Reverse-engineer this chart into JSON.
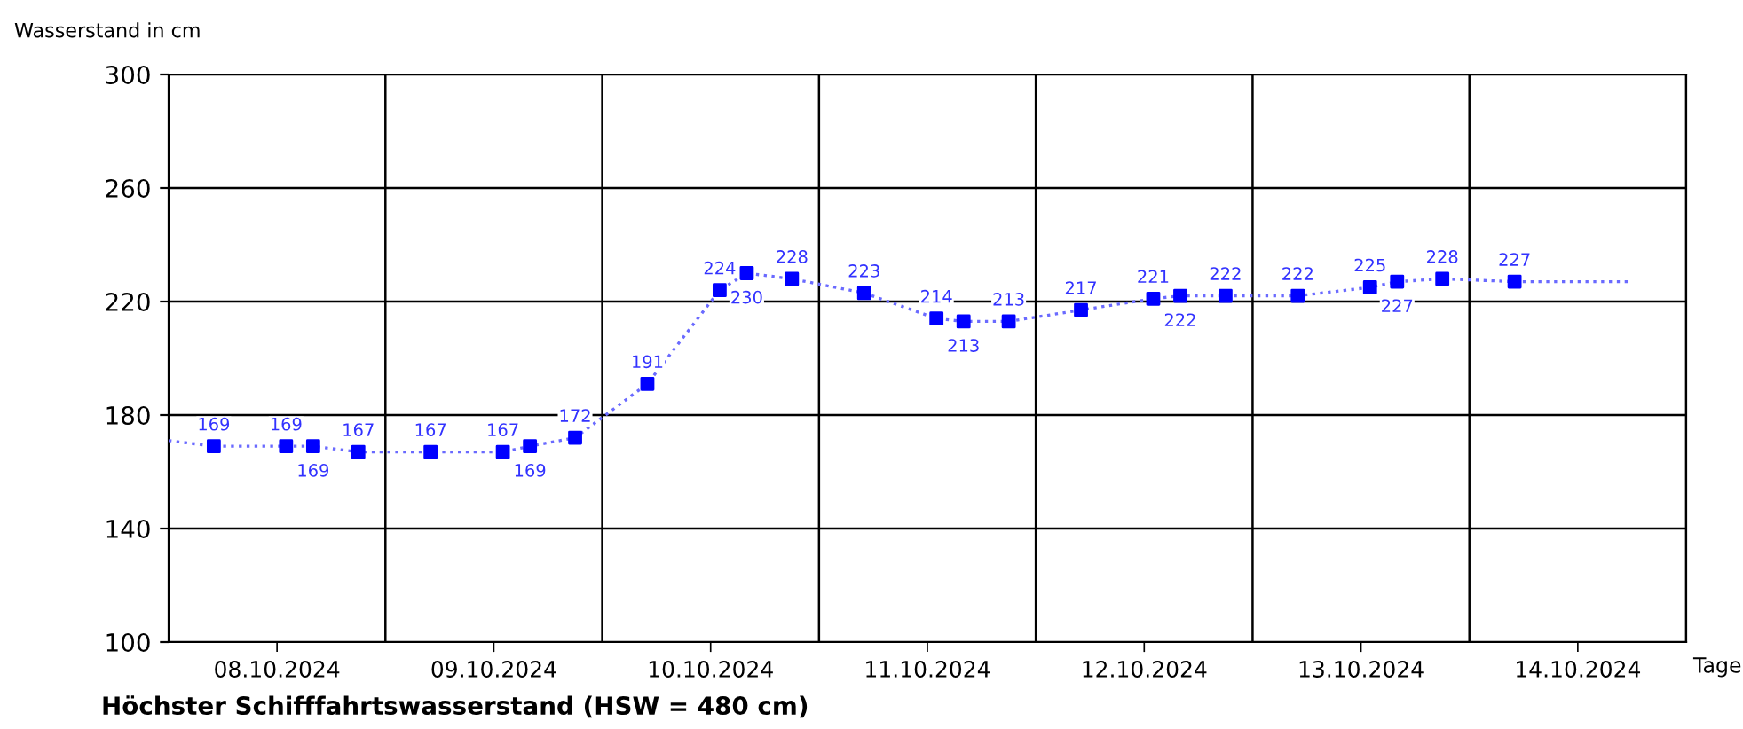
{
  "chart_data": {
    "type": "line",
    "ylabel": "Wasserstand in cm",
    "xlabel": "Tage",
    "annotations": [
      "Höchster Schifffahrtswasserstand (HSW = 480 cm)"
    ],
    "xlim": [
      "2024-10-08T00:00",
      "2024-10-15T00:00"
    ],
    "xticks": [
      {
        "value": "2024-10-08T00:00",
        "label": null
      },
      {
        "value": "2024-10-08T12:00",
        "label": "08.10.2024"
      },
      {
        "value": "2024-10-09T00:00",
        "label": null
      },
      {
        "value": "2024-10-09T12:00",
        "label": "09.10.2024"
      },
      {
        "value": "2024-10-10T00:00",
        "label": null
      },
      {
        "value": "2024-10-10T12:00",
        "label": "10.10.2024"
      },
      {
        "value": "2024-10-11T00:00",
        "label": null
      },
      {
        "value": "2024-10-11T12:00",
        "label": "11.10.2024"
      },
      {
        "value": "2024-10-12T00:00",
        "label": null
      },
      {
        "value": "2024-10-12T12:00",
        "label": "12.10.2024"
      },
      {
        "value": "2024-10-13T00:00",
        "label": null
      },
      {
        "value": "2024-10-13T12:00",
        "label": "13.10.2024"
      },
      {
        "value": "2024-10-14T00:00",
        "label": null
      },
      {
        "value": "2024-10-14T12:00",
        "label": "14.10.2024"
      },
      {
        "value": "2024-10-15T00:00",
        "label": null
      }
    ],
    "ylim": [
      100,
      300
    ],
    "yticks": [
      100,
      140,
      180,
      220,
      260,
      300
    ],
    "grid": true,
    "series": [
      {
        "color": "#6a6aff",
        "line_style": "dotted",
        "marker": "none",
        "x": [
          "2024-10-08T00:00",
          "2024-10-08T05:00",
          "2024-10-08T13:00",
          "2024-10-08T16:00",
          "2024-10-08T21:00",
          "2024-10-09T05:00",
          "2024-10-09T13:00",
          "2024-10-09T16:00",
          "2024-10-09T21:00",
          "2024-10-10T05:00",
          "2024-10-10T13:00",
          "2024-10-10T16:00",
          "2024-10-10T21:00",
          "2024-10-11T05:00",
          "2024-10-11T13:00",
          "2024-10-11T16:00",
          "2024-10-11T21:00",
          "2024-10-12T05:00",
          "2024-10-12T13:00",
          "2024-10-12T16:00",
          "2024-10-12T21:00",
          "2024-10-13T05:00",
          "2024-10-13T13:00",
          "2024-10-13T16:00",
          "2024-10-13T21:00",
          "2024-10-14T05:00",
          "2024-10-14T18:00"
        ],
        "values": [
          171,
          169,
          169,
          169,
          167,
          167,
          167,
          169,
          172,
          191,
          224,
          230,
          228,
          223,
          214,
          213,
          213,
          217,
          221,
          222,
          222,
          222,
          225,
          227,
          228,
          227,
          227
        ]
      },
      {
        "type": "scatter",
        "color": "#0000ff",
        "marker": "square",
        "data_labels": true,
        "x": [
          "2024-10-08T05:00",
          "2024-10-08T13:00",
          "2024-10-08T16:00",
          "2024-10-08T21:00",
          "2024-10-09T05:00",
          "2024-10-09T13:00",
          "2024-10-09T16:00",
          "2024-10-09T21:00",
          "2024-10-10T05:00",
          "2024-10-10T13:00",
          "2024-10-10T16:00",
          "2024-10-10T21:00",
          "2024-10-11T05:00",
          "2024-10-11T13:00",
          "2024-10-11T16:00",
          "2024-10-11T21:00",
          "2024-10-12T05:00",
          "2024-10-12T13:00",
          "2024-10-12T16:00",
          "2024-10-12T21:00",
          "2024-10-13T05:00",
          "2024-10-13T13:00",
          "2024-10-13T16:00",
          "2024-10-13T21:00",
          "2024-10-14T05:00"
        ],
        "values": [
          169,
          169,
          169,
          167,
          167,
          167,
          169,
          172,
          191,
          224,
          230,
          228,
          223,
          214,
          213,
          213,
          217,
          221,
          222,
          222,
          222,
          225,
          227,
          228,
          227
        ]
      }
    ]
  }
}
